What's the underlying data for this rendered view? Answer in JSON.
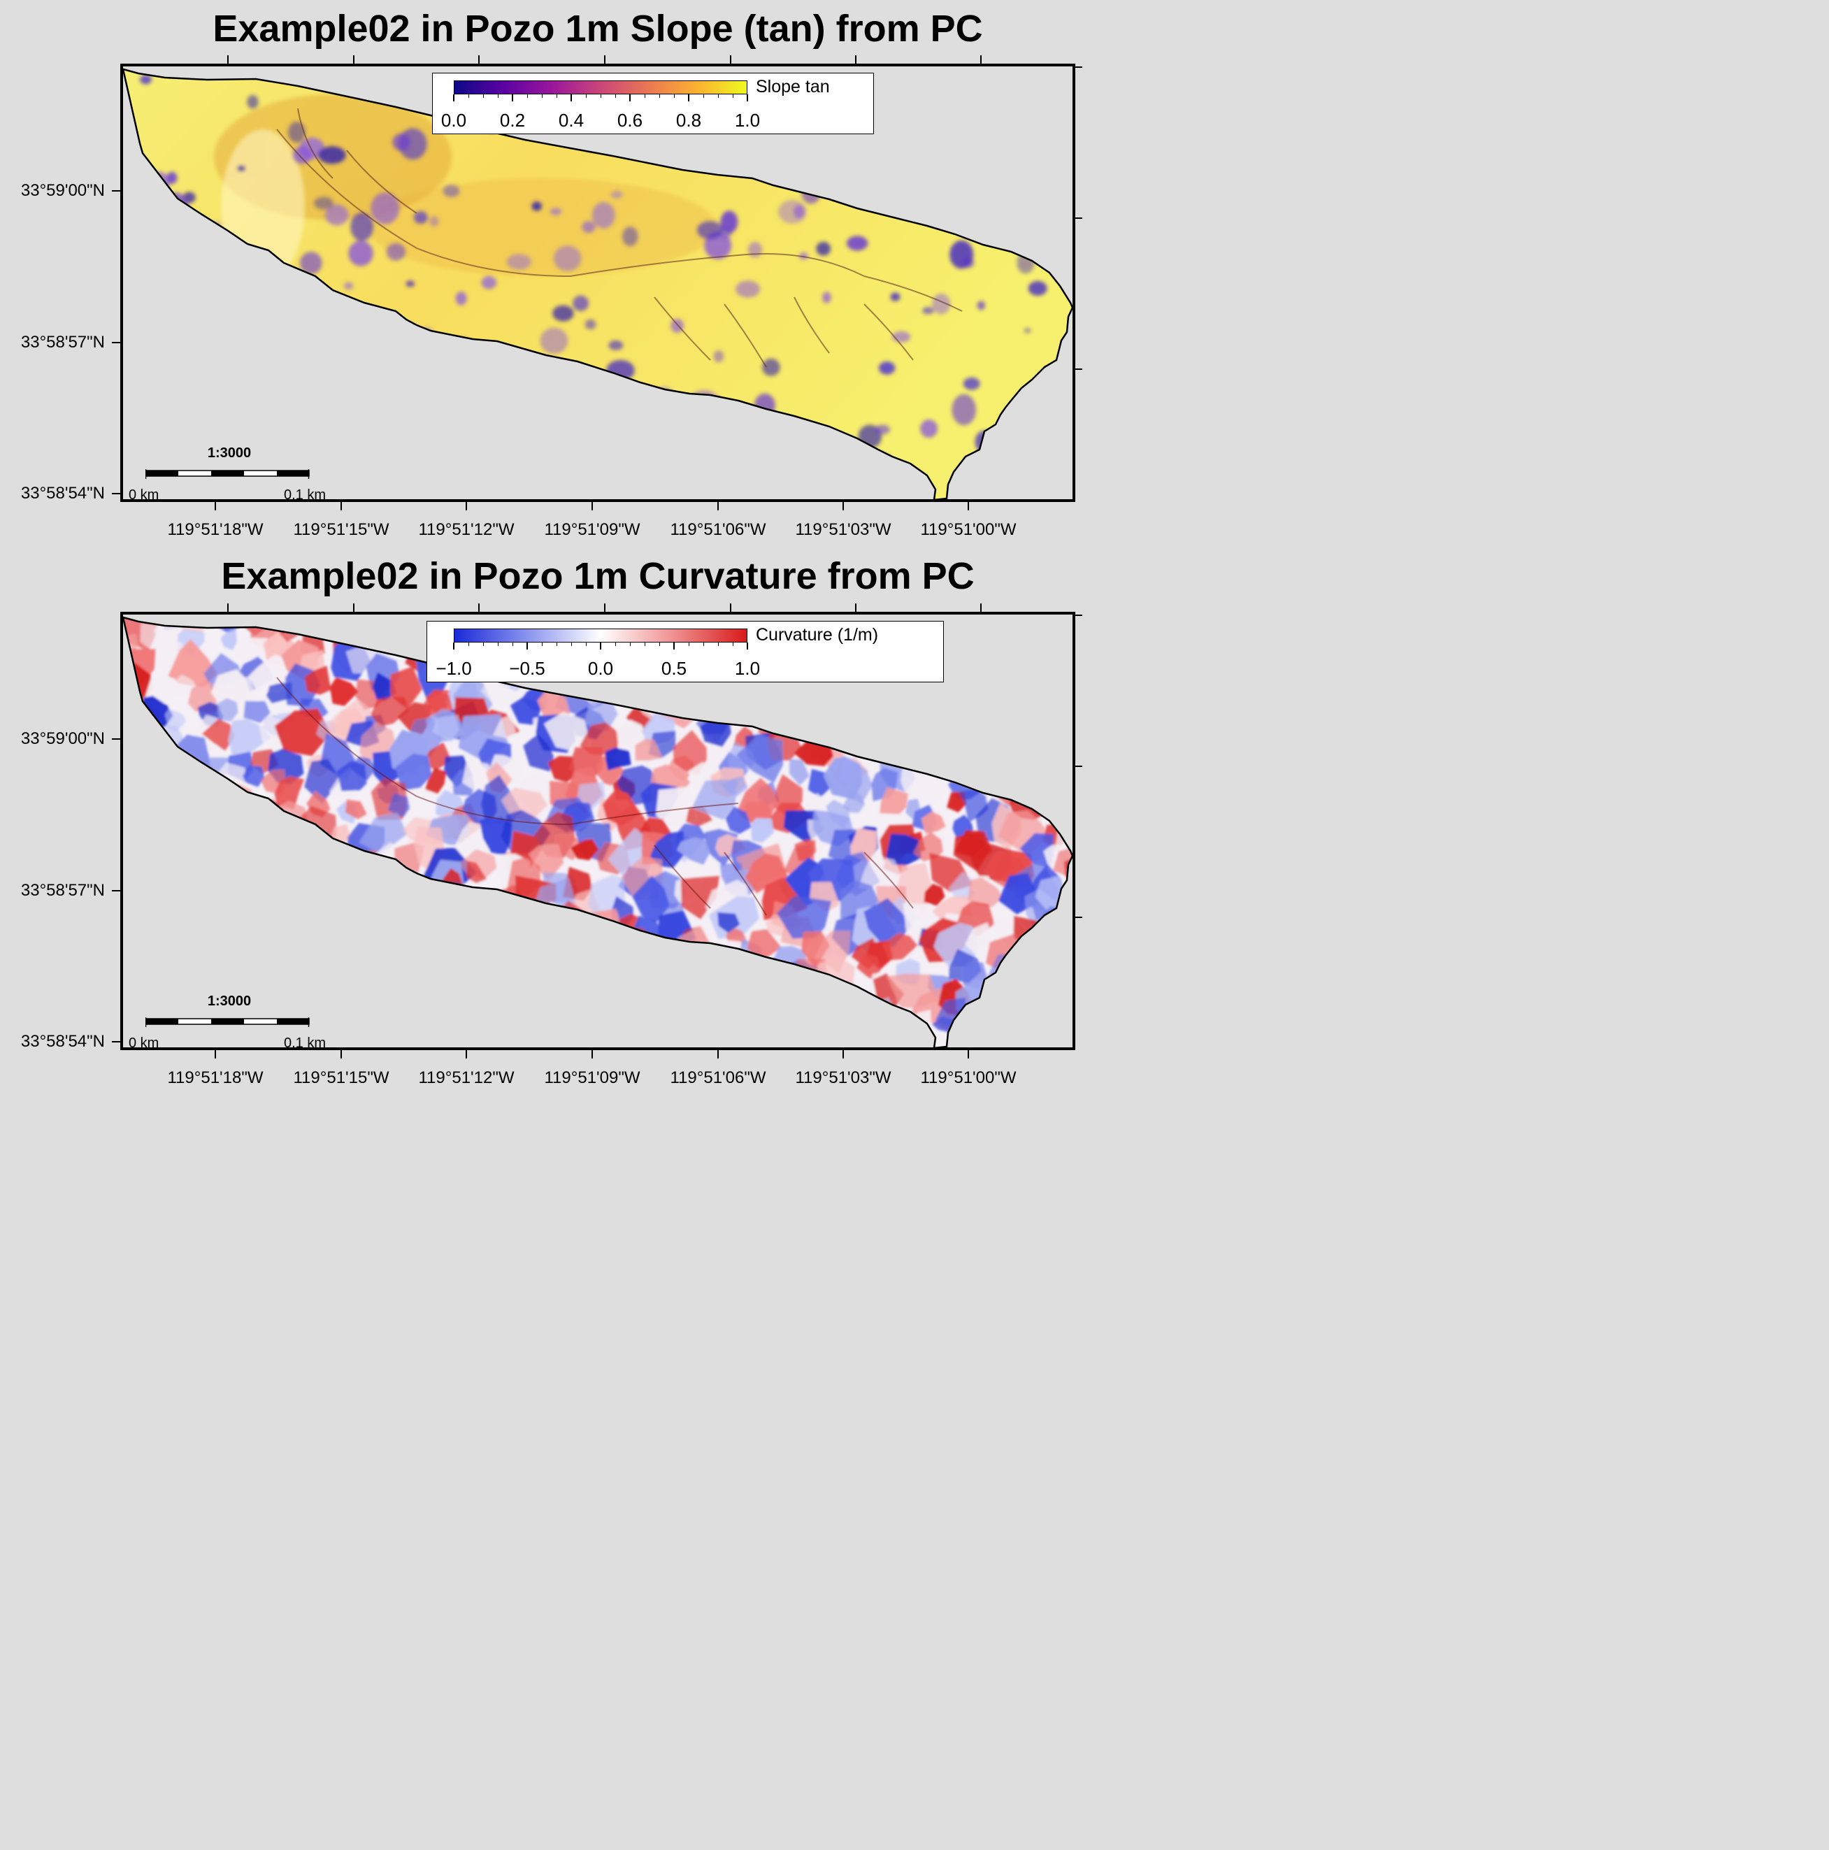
{
  "panels": [
    {
      "id": "slope",
      "title": "Example02 in Pozo 1m Slope (tan) from PC",
      "colorbar": {
        "label": "Slope tan",
        "ticks": [
          "0.0",
          "0.2",
          "0.4",
          "0.6",
          "0.8",
          "1.0"
        ],
        "range": [
          0,
          1
        ],
        "colormap": "plasma-like",
        "colors": [
          "#0d0887",
          "#5b02a3",
          "#9a179b",
          "#cb4679",
          "#eb7852",
          "#fbb32f",
          "#f0f921"
        ]
      },
      "lat_labels": [
        "33°59'00\"N",
        "33°58'57\"N",
        "33°58'54\"N"
      ],
      "lon_labels": [
        "119°51'18\"W",
        "119°51'15\"W",
        "119°51'12\"W",
        "119°51'09\"W",
        "119°51'06\"W",
        "119°51'03\"W",
        "119°51'00\"W"
      ],
      "scalebar": {
        "scale": "1:3000",
        "left_label": "0 km",
        "right_label": "0.1 km"
      }
    },
    {
      "id": "curvature",
      "title": "Example02 in Pozo 1m Curvature from PC",
      "colorbar": {
        "label": "Curvature (1/m)",
        "ticks": [
          "−1.0",
          "−0.5",
          "0.0",
          "0.5",
          "1.0"
        ],
        "range": [
          -1,
          1
        ],
        "colormap": "blue-white-red",
        "colors": [
          "#1a2ad8",
          "#8a94ee",
          "#ffffff",
          "#f09090",
          "#d81a1a"
        ]
      },
      "lat_labels": [
        "33°59'00\"N",
        "33°58'57\"N",
        "33°58'54\"N"
      ],
      "lon_labels": [
        "119°51'18\"W",
        "119°51'15\"W",
        "119°51'12\"W",
        "119°51'09\"W",
        "119°51'06\"W",
        "119°51'03\"W",
        "119°51'00\"W"
      ],
      "scalebar": {
        "scale": "1:3000",
        "left_label": "0 km",
        "right_label": "0.1 km"
      }
    }
  ],
  "style": {
    "background": "#dedede",
    "frame_color": "#000000",
    "outline_color": "#000000"
  }
}
